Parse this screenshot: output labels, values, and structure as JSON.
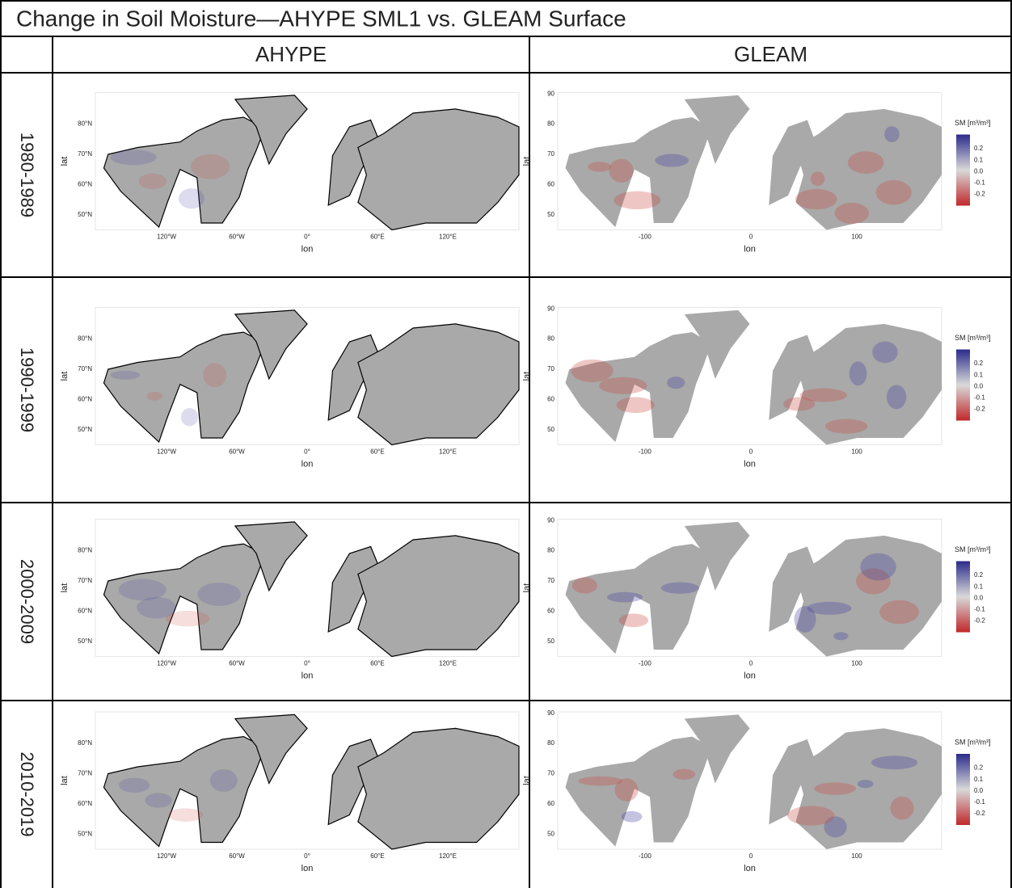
{
  "title": "Change in Soil Moisture—AHYPE SML1 vs. GLEAM Surface",
  "columns": [
    "AHYPE",
    "GLEAM"
  ],
  "rows": [
    "1980-1989",
    "1990-1999",
    "2000-2009",
    "2010-2019"
  ],
  "ahype_panel": {
    "y_label": "lat",
    "x_label": "lon",
    "y_ticks": [
      "80°N",
      "70°N",
      "60°N",
      "50°N"
    ],
    "x_ticks": [
      "120°W",
      "60°W",
      "0°",
      "60°E",
      "120°E"
    ]
  },
  "gleam_panel": {
    "y_label": "lat",
    "x_label": "lon",
    "y_ticks": [
      "90",
      "80",
      "70",
      "60",
      "50"
    ],
    "x_ticks": [
      "-100",
      "0",
      "100"
    ],
    "legend": {
      "title": "SM [m³/m³]",
      "ticks": [
        "0.2",
        "0.1",
        "0.0",
        "-0.1",
        "-0.2"
      ]
    }
  }
}
